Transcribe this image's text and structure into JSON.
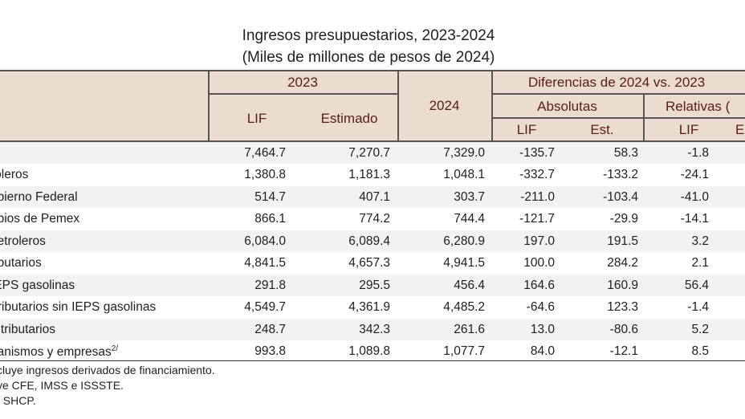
{
  "title": "Ingresos presupuestarios, 2023-2024",
  "subtitle": "(Miles de millones de pesos de 2024)",
  "headers": {
    "y2023": "2023",
    "lif": "LIF",
    "estimado": "Estimado",
    "y2024": "2024",
    "diferencias": "Diferencias de 2024 vs. 2023",
    "absolutas": "Absolutas",
    "relativas": "Relativas (",
    "abs_lif": "LIF",
    "abs_est": "Est.",
    "rel_lif": "LIF",
    "rel_est": "E"
  },
  "rows": [
    {
      "label": "",
      "lif": "7,464.7",
      "est": "7,270.7",
      "v2024": "7,329.0",
      "abs_lif": "-135.7",
      "abs_est": "58.3",
      "rel_lif": "-1.8"
    },
    {
      "label": "roleros",
      "lif": "1,380.8",
      "est": "1,181.3",
      "v2024": "1,048.1",
      "abs_lif": "-332.7",
      "abs_est": "-133.2",
      "rel_lif": "-24.1"
    },
    {
      "label": "obierno Federal",
      "lif": "514.7",
      "est": "407.1",
      "v2024": "303.7",
      "abs_lif": "-211.0",
      "abs_est": "-103.4",
      "rel_lif": "-41.0"
    },
    {
      "label": "opios de Pemex",
      "lif": "866.1",
      "est": "774.2",
      "v2024": "744.4",
      "abs_lif": "-121.7",
      "abs_est": "-29.9",
      "rel_lif": "-14.1"
    },
    {
      "label": "petroleros",
      "lif": "6,084.0",
      "est": "6,089.4",
      "v2024": "6,280.9",
      "abs_lif": "197.0",
      "abs_est": "191.5",
      "rel_lif": "3.2"
    },
    {
      "label": "ributarios",
      "lif": "4,841.5",
      "est": "4,657.3",
      "v2024": "4,941.5",
      "abs_lif": "100.0",
      "abs_est": "284.2",
      "rel_lif": "2.1"
    },
    {
      "label": "IEPS gasolinas",
      "lif": "291.8",
      "est": "295.5",
      "v2024": "456.4",
      "abs_lif": "164.6",
      "abs_est": "160.9",
      "rel_lif": "56.4"
    },
    {
      "label": "Tributarios sin IEPS gasolinas",
      "lif": "4,549.7",
      "est": "4,361.9",
      "v2024": "4,485.2",
      "abs_lif": "-64.6",
      "abs_est": "123.3",
      "rel_lif": "-1.4"
    },
    {
      "label": "o tributarios",
      "lif": "248.7",
      "est": "342.3",
      "v2024": "261.6",
      "abs_lif": "13.0",
      "abs_est": "-80.6",
      "rel_lif": "5.2"
    },
    {
      "label": "ganismos y empresas",
      "sup": "2/",
      "lif": "993.8",
      "est": "1,089.8",
      "v2024": "1,077.7",
      "abs_lif": "84.0",
      "abs_est": "-12.1",
      "rel_lif": "8.5"
    }
  ],
  "notes": [
    "cluye ingresos derivados de financiamiento.",
    "ye CFE, IMSS e ISSSTE.",
    ": SHCP."
  ]
}
